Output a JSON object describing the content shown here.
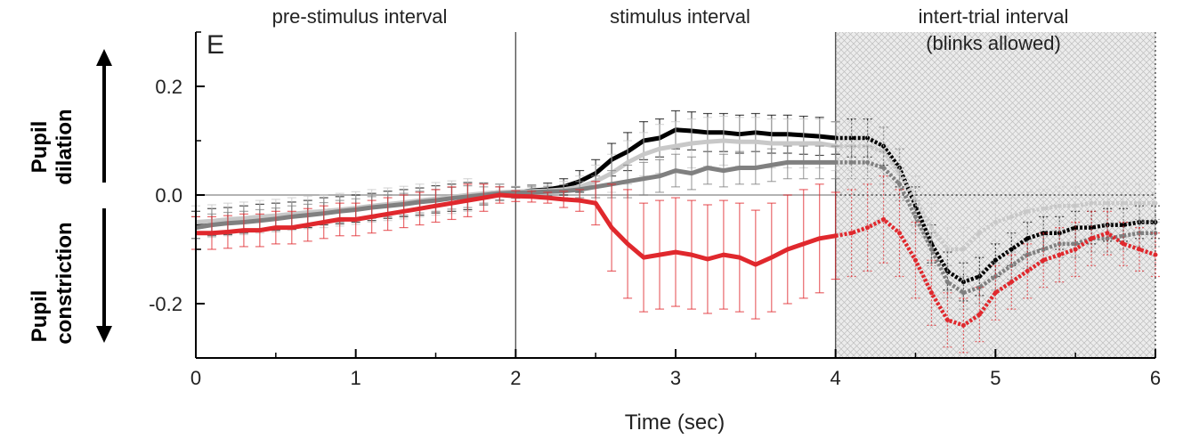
{
  "chart_data": {
    "type": "line",
    "panel_label": "E",
    "xlabel": "Time (sec)",
    "xlim": [
      0,
      6
    ],
    "ylim": [
      -0.3,
      0.3
    ],
    "xticks": [
      0,
      1,
      2,
      3,
      4,
      5,
      6
    ],
    "yticks": [
      0.2,
      0.0,
      -0.2
    ],
    "ytick_labels": [
      "0.2",
      "0.0",
      "-0.2"
    ],
    "interval_labels": {
      "pre": "pre-stimulus interval",
      "stim": "stimulus interval",
      "iti_line1": "intert-trial interval",
      "iti_line2": "(blinks allowed)"
    },
    "interval_boundaries": [
      2,
      4
    ],
    "shaded_region": [
      4,
      6
    ],
    "side_labels": {
      "dilation_line1": "Pupil",
      "dilation_line2": "dilation",
      "constriction_line1": "Pupil",
      "constriction_line2": "constriction"
    },
    "x": [
      0,
      0.1,
      0.2,
      0.3,
      0.4,
      0.5,
      0.6,
      0.7,
      0.8,
      0.9,
      1.0,
      1.1,
      1.2,
      1.3,
      1.4,
      1.5,
      1.6,
      1.7,
      1.8,
      1.9,
      2.0,
      2.1,
      2.2,
      2.3,
      2.4,
      2.5,
      2.6,
      2.7,
      2.8,
      2.9,
      3.0,
      3.1,
      3.2,
      3.3,
      3.4,
      3.5,
      3.6,
      3.7,
      3.8,
      3.9,
      4.0,
      4.1,
      4.2,
      4.3,
      4.4,
      4.5,
      4.6,
      4.7,
      4.8,
      4.9,
      5.0,
      5.1,
      5.2,
      5.3,
      5.4,
      5.5,
      5.6,
      5.7,
      5.8,
      5.9,
      6.0
    ],
    "series": [
      {
        "color": "#000000",
        "values": [
          -0.055,
          -0.05,
          -0.048,
          -0.045,
          -0.042,
          -0.04,
          -0.038,
          -0.035,
          -0.03,
          -0.028,
          -0.025,
          -0.022,
          -0.018,
          -0.015,
          -0.012,
          -0.008,
          -0.005,
          -0.002,
          0.002,
          0.005,
          0.005,
          0.008,
          0.01,
          0.015,
          0.025,
          0.04,
          0.065,
          0.08,
          0.1,
          0.105,
          0.12,
          0.118,
          0.115,
          0.115,
          0.112,
          0.115,
          0.112,
          0.112,
          0.11,
          0.108,
          0.105,
          0.105,
          0.105,
          0.09,
          0.05,
          -0.02,
          -0.09,
          -0.14,
          -0.16,
          -0.15,
          -0.12,
          -0.1,
          -0.08,
          -0.07,
          -0.07,
          -0.06,
          -0.06,
          -0.055,
          -0.055,
          -0.05,
          -0.05
        ],
        "error": [
          0.025,
          0.025,
          0.025,
          0.025,
          0.025,
          0.025,
          0.025,
          0.025,
          0.025,
          0.025,
          0.025,
          0.025,
          0.025,
          0.025,
          0.025,
          0.025,
          0.025,
          0.025,
          0.02,
          0.015,
          0.01,
          0.01,
          0.012,
          0.015,
          0.02,
          0.025,
          0.03,
          0.035,
          0.035,
          0.035,
          0.035,
          0.035,
          0.035,
          0.035,
          0.035,
          0.035,
          0.035,
          0.035,
          0.035,
          0.035,
          0.03,
          0.035,
          0.035,
          0.035,
          0.035,
          0.035,
          0.035,
          0.035,
          0.035,
          0.035,
          0.03,
          0.03,
          0.03,
          0.03,
          0.03,
          0.03,
          0.03,
          0.03,
          0.03,
          0.03,
          0.03
        ]
      },
      {
        "color": "#c8c8c8",
        "values": [
          -0.05,
          -0.048,
          -0.045,
          -0.043,
          -0.04,
          -0.038,
          -0.035,
          -0.032,
          -0.03,
          -0.027,
          -0.024,
          -0.02,
          -0.017,
          -0.014,
          -0.01,
          -0.007,
          -0.004,
          0.0,
          0.003,
          0.005,
          0.006,
          0.007,
          0.008,
          0.01,
          0.015,
          0.025,
          0.04,
          0.06,
          0.075,
          0.085,
          0.09,
          0.095,
          0.098,
          0.1,
          0.098,
          0.098,
          0.095,
          0.095,
          0.095,
          0.095,
          0.09,
          0.09,
          0.09,
          0.08,
          0.04,
          -0.01,
          -0.06,
          -0.1,
          -0.1,
          -0.07,
          -0.05,
          -0.04,
          -0.03,
          -0.025,
          -0.02,
          -0.02,
          -0.015,
          -0.015,
          -0.015,
          -0.015,
          -0.015
        ],
        "error": [
          0.03,
          0.03,
          0.03,
          0.03,
          0.03,
          0.03,
          0.03,
          0.03,
          0.03,
          0.03,
          0.03,
          0.03,
          0.03,
          0.03,
          0.03,
          0.03,
          0.03,
          0.03,
          0.02,
          0.015,
          0.01,
          0.01,
          0.012,
          0.015,
          0.02,
          0.03,
          0.035,
          0.04,
          0.04,
          0.045,
          0.045,
          0.045,
          0.045,
          0.045,
          0.045,
          0.045,
          0.045,
          0.045,
          0.045,
          0.045,
          0.045,
          0.045,
          0.045,
          0.045,
          0.045,
          0.045,
          0.045,
          0.04,
          0.04,
          0.04,
          0.035,
          0.035,
          0.035,
          0.035,
          0.035,
          0.035,
          0.035,
          0.035,
          0.035,
          0.035,
          0.035
        ]
      },
      {
        "color": "#808080",
        "values": [
          -0.06,
          -0.055,
          -0.052,
          -0.05,
          -0.047,
          -0.044,
          -0.04,
          -0.037,
          -0.034,
          -0.03,
          -0.027,
          -0.023,
          -0.02,
          -0.017,
          -0.013,
          -0.01,
          -0.006,
          -0.003,
          0.0,
          0.003,
          0.004,
          0.005,
          0.006,
          0.007,
          0.01,
          0.015,
          0.02,
          0.025,
          0.03,
          0.035,
          0.045,
          0.04,
          0.05,
          0.045,
          0.05,
          0.05,
          0.055,
          0.06,
          0.06,
          0.06,
          0.06,
          0.06,
          0.06,
          0.05,
          0.02,
          -0.04,
          -0.1,
          -0.16,
          -0.18,
          -0.17,
          -0.15,
          -0.13,
          -0.11,
          -0.1,
          -0.09,
          -0.09,
          -0.08,
          -0.08,
          -0.075,
          -0.07,
          -0.07
        ],
        "error": [
          0.02,
          0.02,
          0.02,
          0.02,
          0.02,
          0.02,
          0.02,
          0.02,
          0.02,
          0.02,
          0.02,
          0.02,
          0.02,
          0.02,
          0.02,
          0.02,
          0.02,
          0.02,
          0.015,
          0.012,
          0.01,
          0.01,
          0.01,
          0.012,
          0.015,
          0.02,
          0.025,
          0.03,
          0.03,
          0.03,
          0.03,
          0.03,
          0.03,
          0.03,
          0.03,
          0.03,
          0.03,
          0.03,
          0.03,
          0.03,
          0.03,
          0.03,
          0.03,
          0.03,
          0.03,
          0.03,
          0.03,
          0.03,
          0.03,
          0.03,
          0.025,
          0.025,
          0.025,
          0.025,
          0.025,
          0.025,
          0.025,
          0.025,
          0.025,
          0.025,
          0.025
        ]
      },
      {
        "color": "#e0282d",
        "values": [
          -0.07,
          -0.07,
          -0.068,
          -0.065,
          -0.065,
          -0.06,
          -0.06,
          -0.055,
          -0.05,
          -0.045,
          -0.045,
          -0.04,
          -0.035,
          -0.03,
          -0.025,
          -0.02,
          -0.015,
          -0.01,
          -0.005,
          0.0,
          -0.002,
          -0.003,
          -0.005,
          -0.008,
          -0.01,
          -0.015,
          -0.06,
          -0.09,
          -0.115,
          -0.11,
          -0.105,
          -0.11,
          -0.118,
          -0.11,
          -0.115,
          -0.128,
          -0.115,
          -0.1,
          -0.09,
          -0.08,
          -0.075,
          -0.07,
          -0.06,
          -0.045,
          -0.07,
          -0.12,
          -0.18,
          -0.23,
          -0.24,
          -0.22,
          -0.18,
          -0.16,
          -0.14,
          -0.12,
          -0.11,
          -0.1,
          -0.08,
          -0.07,
          -0.09,
          -0.1,
          -0.11
        ],
        "error": [
          0.03,
          0.03,
          0.03,
          0.03,
          0.03,
          0.03,
          0.03,
          0.03,
          0.03,
          0.03,
          0.03,
          0.03,
          0.03,
          0.03,
          0.03,
          0.03,
          0.03,
          0.03,
          0.025,
          0.015,
          0.01,
          0.01,
          0.01,
          0.015,
          0.02,
          0.04,
          0.08,
          0.1,
          0.1,
          0.1,
          0.1,
          0.1,
          0.1,
          0.1,
          0.1,
          0.1,
          0.1,
          0.1,
          0.1,
          0.1,
          0.08,
          0.08,
          0.08,
          0.08,
          0.08,
          0.07,
          0.06,
          0.05,
          0.05,
          0.05,
          0.05,
          0.05,
          0.05,
          0.05,
          0.05,
          0.05,
          0.05,
          0.04,
          0.04,
          0.04,
          0.04
        ]
      }
    ]
  }
}
